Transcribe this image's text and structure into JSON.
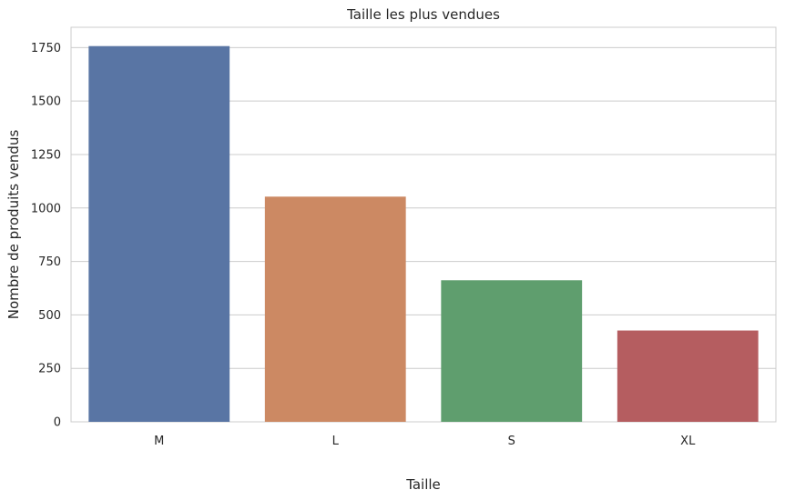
{
  "chart_data": {
    "type": "bar",
    "title": "Taille les plus vendues",
    "xlabel": "Taille",
    "ylabel": "Nombre de produits vendus",
    "categories": [
      "M",
      "L",
      "S",
      "XL"
    ],
    "values": [
      1757,
      1053,
      662,
      427
    ],
    "colors": [
      "#5975a4",
      "#cc8963",
      "#5f9e6e",
      "#b55d60"
    ],
    "ylim": [
      0,
      1845
    ],
    "yticks": [
      0,
      250,
      500,
      750,
      1000,
      1250,
      1500,
      1750
    ],
    "grid": true,
    "background_color": "#ffffff",
    "grid_color": "#cccccc"
  }
}
